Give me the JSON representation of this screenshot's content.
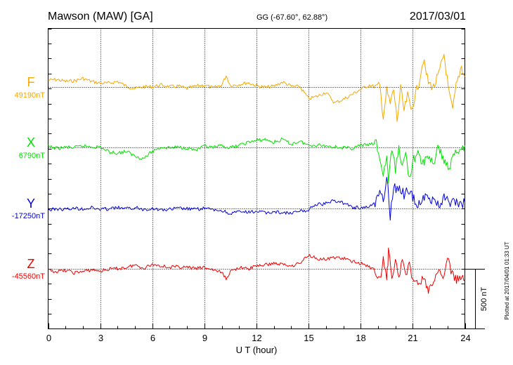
{
  "header": {
    "station": "Mawson (MAW)  [GA]",
    "coords": "GG (-67.60°,  62.88°)",
    "date": "2017/03/01"
  },
  "footer": {
    "plotted": "Plotted at 2017/04/01 01:33 UT"
  },
  "colors": {
    "F": "#f5a800",
    "X": "#00e000",
    "Y": "#0000dd",
    "Z": "#ee0000",
    "grid": "#000000"
  },
  "chart_data": {
    "type": "line",
    "xlabel": "U T (hour)",
    "xlim": [
      0,
      24
    ],
    "xticks": [
      "0",
      "3",
      "6",
      "9",
      "12",
      "15",
      "18",
      "21",
      "24"
    ],
    "scale_bar": {
      "label": "500 nT",
      "value_nT": 500
    },
    "series": [
      {
        "name": "F",
        "baseline_label": "49190nT",
        "baseline_nT": 49190,
        "points": [
          [
            0,
            49250
          ],
          [
            0.5,
            49255
          ],
          [
            1,
            49240
          ],
          [
            1.5,
            49245
          ],
          [
            2,
            49265
          ],
          [
            2.5,
            49240
          ],
          [
            3,
            49225
          ],
          [
            3.5,
            49225
          ],
          [
            4,
            49240
          ],
          [
            4.5,
            49200
          ],
          [
            5,
            49180
          ],
          [
            5.5,
            49195
          ],
          [
            6,
            49195
          ],
          [
            6.5,
            49210
          ],
          [
            7,
            49195
          ],
          [
            7.5,
            49200
          ],
          [
            8,
            49180
          ],
          [
            8.5,
            49200
          ],
          [
            9,
            49210
          ],
          [
            9.5,
            49185
          ],
          [
            10,
            49210
          ],
          [
            10.25,
            49290
          ],
          [
            10.5,
            49205
          ],
          [
            11,
            49215
          ],
          [
            11.5,
            49230
          ],
          [
            12,
            49205
          ],
          [
            12.5,
            49190
          ],
          [
            13,
            49200
          ],
          [
            13.5,
            49235
          ],
          [
            14,
            49200
          ],
          [
            14.5,
            49195
          ],
          [
            15,
            49095
          ],
          [
            15.5,
            49115
          ],
          [
            16,
            49150
          ],
          [
            16.5,
            49060
          ],
          [
            17,
            49090
          ],
          [
            17.5,
            49130
          ],
          [
            18,
            49175
          ],
          [
            18.5,
            49210
          ],
          [
            18.9,
            49190
          ],
          [
            19.1,
            49200
          ],
          [
            19.3,
            48950
          ],
          [
            19.5,
            49160
          ],
          [
            19.7,
            49050
          ],
          [
            19.9,
            49170
          ],
          [
            20.1,
            48910
          ],
          [
            20.3,
            49180
          ],
          [
            20.5,
            48990
          ],
          [
            20.7,
            49120
          ],
          [
            20.9,
            49000
          ],
          [
            21.1,
            49100
          ],
          [
            21.3,
            49200
          ],
          [
            21.6,
            49420
          ],
          [
            21.9,
            49230
          ],
          [
            22.2,
            49190
          ],
          [
            22.5,
            49300
          ],
          [
            22.8,
            49470
          ],
          [
            23.1,
            49120
          ],
          [
            23.3,
            49000
          ],
          [
            23.5,
            49200
          ],
          [
            23.8,
            49370
          ],
          [
            24,
            49280
          ]
        ]
      },
      {
        "name": "X",
        "baseline_label": "6790nT",
        "baseline_nT": 6790,
        "points": [
          [
            0,
            6800
          ],
          [
            0.5,
            6785
          ],
          [
            1,
            6795
          ],
          [
            1.5,
            6790
          ],
          [
            2,
            6805
          ],
          [
            2.5,
            6800
          ],
          [
            3,
            6795
          ],
          [
            3.5,
            6755
          ],
          [
            4,
            6745
          ],
          [
            4.5,
            6760
          ],
          [
            5,
            6720
          ],
          [
            5.5,
            6700
          ],
          [
            6,
            6760
          ],
          [
            6.5,
            6795
          ],
          [
            7,
            6790
          ],
          [
            7.5,
            6795
          ],
          [
            8,
            6790
          ],
          [
            8.5,
            6770
          ],
          [
            9,
            6800
          ],
          [
            9.5,
            6790
          ],
          [
            10,
            6805
          ],
          [
            10.5,
            6790
          ],
          [
            11,
            6810
          ],
          [
            11.5,
            6835
          ],
          [
            12,
            6850
          ],
          [
            12.5,
            6860
          ],
          [
            13,
            6835
          ],
          [
            13.5,
            6860
          ],
          [
            14,
            6820
          ],
          [
            14.5,
            6845
          ],
          [
            15,
            6810
          ],
          [
            15.5,
            6815
          ],
          [
            16,
            6805
          ],
          [
            16.5,
            6800
          ],
          [
            17,
            6790
          ],
          [
            17.5,
            6785
          ],
          [
            18,
            6810
          ],
          [
            18.5,
            6815
          ],
          [
            18.9,
            6830
          ],
          [
            19.1,
            6700
          ],
          [
            19.3,
            6560
          ],
          [
            19.5,
            6720
          ],
          [
            19.6,
            6510
          ],
          [
            19.8,
            6780
          ],
          [
            20.0,
            6600
          ],
          [
            20.2,
            6810
          ],
          [
            20.4,
            6620
          ],
          [
            20.6,
            6740
          ],
          [
            20.8,
            6530
          ],
          [
            21,
            6680
          ],
          [
            21.3,
            6730
          ],
          [
            21.6,
            6660
          ],
          [
            21.9,
            6720
          ],
          [
            22.2,
            6660
          ],
          [
            22.5,
            6800
          ],
          [
            22.8,
            6680
          ],
          [
            23.1,
            6620
          ],
          [
            23.4,
            6740
          ],
          [
            23.7,
            6780
          ],
          [
            24,
            6810
          ]
        ]
      },
      {
        "name": "Y",
        "baseline_label": "-17250nT",
        "baseline_nT": -17250,
        "points": [
          [
            0,
            -17260
          ],
          [
            0.5,
            -17250
          ],
          [
            1,
            -17255
          ],
          [
            1.5,
            -17245
          ],
          [
            2,
            -17250
          ],
          [
            2.5,
            -17240
          ],
          [
            3,
            -17255
          ],
          [
            3.5,
            -17250
          ],
          [
            4,
            -17240
          ],
          [
            4.5,
            -17250
          ],
          [
            5,
            -17240
          ],
          [
            5.5,
            -17255
          ],
          [
            6,
            -17245
          ],
          [
            6.5,
            -17260
          ],
          [
            7,
            -17255
          ],
          [
            7.5,
            -17245
          ],
          [
            8,
            -17250
          ],
          [
            8.5,
            -17255
          ],
          [
            9,
            -17245
          ],
          [
            9.5,
            -17260
          ],
          [
            10,
            -17265
          ],
          [
            10.5,
            -17290
          ],
          [
            11,
            -17275
          ],
          [
            11.5,
            -17280
          ],
          [
            12,
            -17270
          ],
          [
            12.5,
            -17285
          ],
          [
            13,
            -17275
          ],
          [
            13.5,
            -17280
          ],
          [
            14,
            -17290
          ],
          [
            14.5,
            -17270
          ],
          [
            15,
            -17265
          ],
          [
            15.2,
            -17225
          ],
          [
            15.5,
            -17215
          ],
          [
            16,
            -17205
          ],
          [
            16.5,
            -17180
          ],
          [
            17,
            -17200
          ],
          [
            17.5,
            -17235
          ],
          [
            18,
            -17245
          ],
          [
            18.5,
            -17230
          ],
          [
            18.9,
            -17190
          ],
          [
            19.1,
            -17060
          ],
          [
            19.3,
            -17200
          ],
          [
            19.5,
            -16950
          ],
          [
            19.7,
            -17310
          ],
          [
            19.9,
            -17050
          ],
          [
            20.1,
            -17100
          ],
          [
            20.3,
            -17080
          ],
          [
            20.5,
            -17130
          ],
          [
            20.7,
            -17100
          ],
          [
            21,
            -17150
          ],
          [
            21.3,
            -17220
          ],
          [
            21.6,
            -17140
          ],
          [
            21.9,
            -17180
          ],
          [
            22.2,
            -17160
          ],
          [
            22.5,
            -17220
          ],
          [
            22.8,
            -17160
          ],
          [
            23.1,
            -17200
          ],
          [
            23.4,
            -17190
          ],
          [
            23.7,
            -17215
          ],
          [
            24,
            -17200
          ]
        ]
      },
      {
        "name": "Z",
        "baseline_label": "-45560nT",
        "baseline_nT": -45560,
        "points": [
          [
            0,
            -45570
          ],
          [
            0.5,
            -45580
          ],
          [
            1,
            -45570
          ],
          [
            1.5,
            -45590
          ],
          [
            2,
            -45580
          ],
          [
            2.5,
            -45565
          ],
          [
            3,
            -45575
          ],
          [
            3.5,
            -45560
          ],
          [
            4,
            -45555
          ],
          [
            4.5,
            -45545
          ],
          [
            5,
            -45525
          ],
          [
            5.5,
            -45550
          ],
          [
            6,
            -45520
          ],
          [
            6.5,
            -45530
          ],
          [
            7,
            -45545
          ],
          [
            7.5,
            -45540
          ],
          [
            8,
            -45545
          ],
          [
            8.5,
            -45555
          ],
          [
            9,
            -45545
          ],
          [
            9.5,
            -45565
          ],
          [
            10,
            -45590
          ],
          [
            10.25,
            -45640
          ],
          [
            10.5,
            -45580
          ],
          [
            11,
            -45545
          ],
          [
            11.5,
            -45560
          ],
          [
            12,
            -45530
          ],
          [
            12.5,
            -45525
          ],
          [
            13,
            -45510
          ],
          [
            13.5,
            -45520
          ],
          [
            14,
            -45530
          ],
          [
            14.5,
            -45510
          ],
          [
            15,
            -45440
          ],
          [
            15.5,
            -45470
          ],
          [
            16,
            -45480
          ],
          [
            16.5,
            -45460
          ],
          [
            17,
            -45470
          ],
          [
            17.5,
            -45495
          ],
          [
            18,
            -45510
          ],
          [
            18.5,
            -45540
          ],
          [
            18.9,
            -45580
          ],
          [
            19.1,
            -45650
          ],
          [
            19.3,
            -45480
          ],
          [
            19.5,
            -45660
          ],
          [
            19.6,
            -45410
          ],
          [
            19.8,
            -45600
          ],
          [
            20.0,
            -45500
          ],
          [
            20.2,
            -45640
          ],
          [
            20.4,
            -45460
          ],
          [
            20.6,
            -45580
          ],
          [
            20.8,
            -45540
          ],
          [
            21,
            -45620
          ],
          [
            21.3,
            -45700
          ],
          [
            21.6,
            -45630
          ],
          [
            21.9,
            -45740
          ],
          [
            22.2,
            -45680
          ],
          [
            22.5,
            -45580
          ],
          [
            22.8,
            -45620
          ],
          [
            23.0,
            -45470
          ],
          [
            23.2,
            -45560
          ],
          [
            23.4,
            -45660
          ],
          [
            23.7,
            -45610
          ],
          [
            24,
            -45650
          ]
        ]
      }
    ]
  }
}
